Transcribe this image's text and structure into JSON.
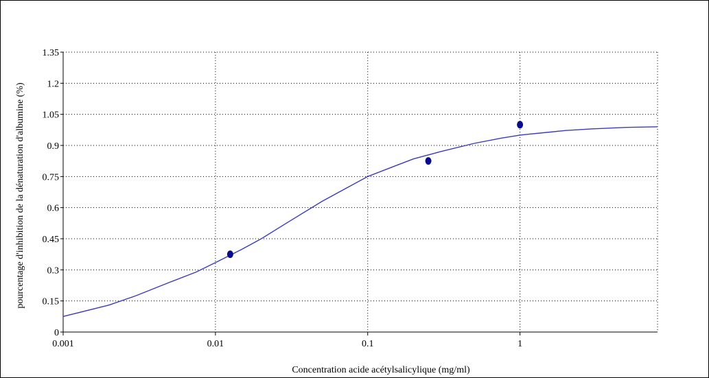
{
  "chart_data": {
    "type": "scatter",
    "xlabel": "Concentration acide acétylsalicylique (mg/ml)",
    "ylabel": "pourcentage d'inhibition de la dénaturation d'albumine (%)",
    "x_scale": "log",
    "xlim": [
      0.001,
      8
    ],
    "ylim": [
      0,
      1.35
    ],
    "x_ticks": [
      0.001,
      0.01,
      0.1,
      1
    ],
    "x_tick_labels": [
      "0.001",
      "0.01",
      "0.1",
      "1"
    ],
    "y_ticks": [
      0,
      0.15,
      0.3,
      0.45,
      0.6,
      0.75,
      0.9,
      1.05,
      1.2,
      1.35
    ],
    "y_tick_labels": [
      "0",
      "0.15",
      "0.3",
      "0.45",
      "0.6",
      "0.75",
      "0.9",
      "1.05",
      "1.2",
      "1.35"
    ],
    "grid": true,
    "series": [
      {
        "type": "scatter",
        "color": "#0a0a8c",
        "points": [
          {
            "x": 0.0125,
            "y": 0.375
          },
          {
            "x": 0.25,
            "y": 0.825
          },
          {
            "x": 1.0,
            "y": 1.0
          }
        ]
      },
      {
        "type": "line",
        "color": "#3a3ab8",
        "points": [
          {
            "x": 0.001,
            "y": 0.075
          },
          {
            "x": 0.002,
            "y": 0.13
          },
          {
            "x": 0.003,
            "y": 0.175
          },
          {
            "x": 0.005,
            "y": 0.24
          },
          {
            "x": 0.0075,
            "y": 0.29
          },
          {
            "x": 0.01,
            "y": 0.335
          },
          {
            "x": 0.015,
            "y": 0.4
          },
          {
            "x": 0.02,
            "y": 0.45
          },
          {
            "x": 0.03,
            "y": 0.53
          },
          {
            "x": 0.05,
            "y": 0.63
          },
          {
            "x": 0.075,
            "y": 0.7
          },
          {
            "x": 0.1,
            "y": 0.75
          },
          {
            "x": 0.15,
            "y": 0.8
          },
          {
            "x": 0.2,
            "y": 0.835
          },
          {
            "x": 0.3,
            "y": 0.87
          },
          {
            "x": 0.5,
            "y": 0.91
          },
          {
            "x": 0.75,
            "y": 0.935
          },
          {
            "x": 1.0,
            "y": 0.95
          },
          {
            "x": 1.5,
            "y": 0.963
          },
          {
            "x": 2.0,
            "y": 0.972
          },
          {
            "x": 3.0,
            "y": 0.98
          },
          {
            "x": 5.0,
            "y": 0.987
          },
          {
            "x": 8.0,
            "y": 0.99
          }
        ]
      }
    ]
  }
}
